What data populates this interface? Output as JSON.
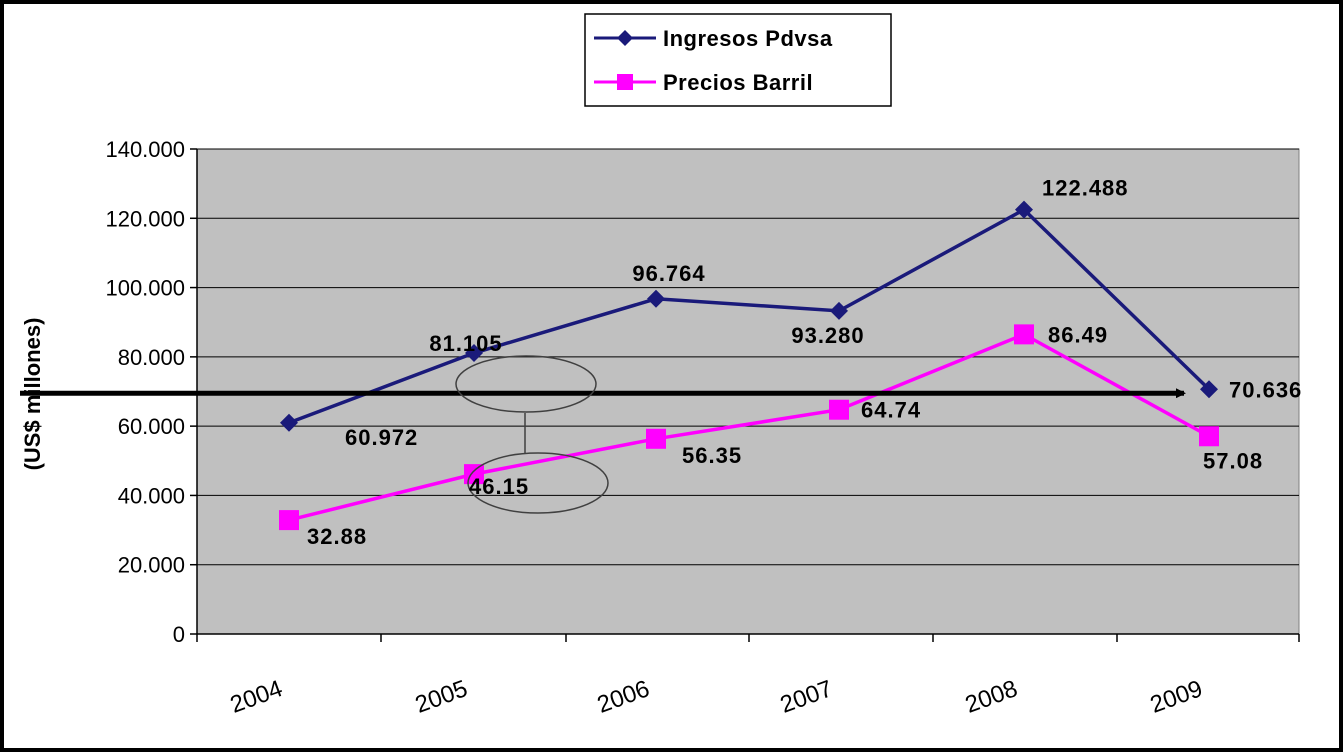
{
  "chart_data": {
    "type": "line",
    "title": "",
    "xlabel": "",
    "ylabel": "(US$ millones)",
    "categories": [
      "2004",
      "2005",
      "2006",
      "2007",
      "2008",
      "2009"
    ],
    "ylim": [
      0,
      140000
    ],
    "yticks": [
      0,
      20000,
      40000,
      60000,
      80000,
      100000,
      120000,
      140000
    ],
    "ytick_labels": [
      "0",
      "20.000",
      "40.000",
      "60.000",
      "80.000",
      "100.000",
      "120.000",
      "140.000"
    ],
    "grid": true,
    "legend_position": "top-center",
    "series": [
      {
        "name": "Ingresos  Pdvsa",
        "color": "#1a1a7a",
        "marker": "diamond",
        "values": [
          60972,
          81105,
          96764,
          93280,
          122488,
          70636
        ],
        "labels": [
          "60.972",
          "81.105",
          "96.764",
          "93.280",
          "122.488",
          "70.636"
        ]
      },
      {
        "name": "Precios Barril",
        "color": "#ff00ff",
        "marker": "square",
        "values": [
          32880,
          46150,
          56350,
          64740,
          86490,
          57080
        ],
        "labels": [
          "32.88",
          "46.15",
          "56.35",
          "64.74",
          "86.49",
          "57.08"
        ]
      }
    ],
    "annotations": {
      "reference_line_value": 69500,
      "reference_line": "horizontal arrow",
      "circled_values": [
        "81.105",
        "46.15"
      ]
    }
  }
}
